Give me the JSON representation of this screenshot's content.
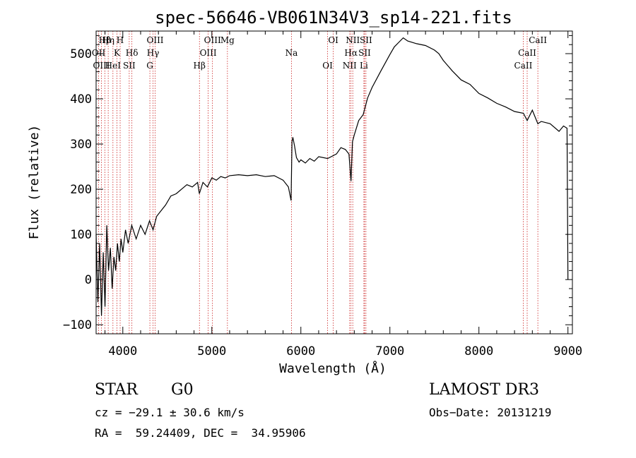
{
  "chart_data": {
    "type": "line",
    "title": "spec-56646-VB061N34V3_sp14-221.fits",
    "xlabel": "Wavelength (Å)",
    "ylabel": "Flux (relative)",
    "xlim": [
      3700,
      9050
    ],
    "ylim": [
      -120,
      550
    ],
    "xticks": [
      4000,
      5000,
      6000,
      7000,
      8000,
      9000
    ],
    "yticks": [
      -100,
      0,
      100,
      200,
      300,
      400,
      500
    ],
    "spectrum": {
      "x": [
        3700,
        3720,
        3740,
        3760,
        3780,
        3800,
        3820,
        3840,
        3860,
        3880,
        3900,
        3920,
        3940,
        3960,
        3980,
        4000,
        4030,
        4060,
        4100,
        4150,
        4200,
        4250,
        4300,
        4340,
        4380,
        4420,
        4480,
        4540,
        4600,
        4660,
        4720,
        4780,
        4840,
        4860,
        4900,
        4950,
        5000,
        5050,
        5100,
        5150,
        5200,
        5300,
        5400,
        5500,
        5600,
        5700,
        5800,
        5860,
        5890,
        5900,
        5910,
        5930,
        5950,
        5980,
        6000,
        6050,
        6100,
        6150,
        6200,
        6300,
        6400,
        6450,
        6500,
        6540,
        6563,
        6580,
        6600,
        6650,
        6700,
        6750,
        6800,
        6900,
        7000,
        7050,
        7100,
        7150,
        7200,
        7300,
        7400,
        7500,
        7550,
        7600,
        7700,
        7800,
        7900,
        8000,
        8100,
        8200,
        8300,
        8400,
        8500,
        8542,
        8600,
        8662,
        8700,
        8800,
        8900,
        8950,
        8990,
        9000
      ],
      "y": [
        100,
        -50,
        80,
        -80,
        60,
        -60,
        120,
        20,
        70,
        -20,
        50,
        20,
        80,
        40,
        90,
        60,
        110,
        80,
        120,
        90,
        120,
        100,
        130,
        110,
        140,
        150,
        165,
        185,
        190,
        200,
        210,
        205,
        215,
        190,
        215,
        205,
        225,
        220,
        228,
        225,
        230,
        232,
        230,
        232,
        228,
        230,
        220,
        205,
        175,
        305,
        315,
        295,
        270,
        260,
        265,
        258,
        268,
        262,
        272,
        268,
        278,
        292,
        288,
        278,
        218,
        305,
        320,
        352,
        365,
        402,
        425,
        462,
        498,
        515,
        525,
        535,
        528,
        522,
        518,
        508,
        500,
        485,
        462,
        442,
        432,
        412,
        402,
        390,
        382,
        372,
        368,
        352,
        375,
        345,
        350,
        345,
        328,
        340,
        335,
        0
      ]
    },
    "emission_lines": [
      {
        "label": "Hβ",
        "wavelength": 3798
      },
      {
        "label": "OII",
        "wavelength": 3728
      },
      {
        "label": "OIII",
        "wavelength": 3760
      },
      {
        "label": "Hη",
        "wavelength": 3836
      },
      {
        "label": "K",
        "wavelength": 3934
      },
      {
        "label": "HeI",
        "wavelength": 3889
      },
      {
        "label": "H",
        "wavelength": 3970
      },
      {
        "label": "Hδ",
        "wavelength": 4102
      },
      {
        "label": "SII",
        "wavelength": 4072
      },
      {
        "label": "OIII",
        "wavelength": 4363
      },
      {
        "label": "Hγ",
        "wavelength": 4340
      },
      {
        "label": "G",
        "wavelength": 4304
      },
      {
        "label": "OIII",
        "wavelength": 5007
      },
      {
        "label": "OIII",
        "wavelength": 4959
      },
      {
        "label": "Hβ",
        "wavelength": 4861
      },
      {
        "label": "Mg",
        "wavelength": 5175
      },
      {
        "label": "Na",
        "wavelength": 5894
      },
      {
        "label": "OI",
        "wavelength": 6300
      },
      {
        "label": "OI",
        "wavelength": 6364
      },
      {
        "label": "Hα",
        "wavelength": 6563
      },
      {
        "label": "NII",
        "wavelength": 6548
      },
      {
        "label": "NII",
        "wavelength": 6583
      },
      {
        "label": "SII",
        "wavelength": 6716
      },
      {
        "label": "Li",
        "wavelength": 6708
      },
      {
        "label": "SII",
        "wavelength": 6731
      },
      {
        "label": "CaII",
        "wavelength": 8542
      },
      {
        "label": "CaII",
        "wavelength": 8498
      },
      {
        "label": "CaII",
        "wavelength": 8662
      }
    ],
    "grid": false,
    "legend": "none",
    "colors": {
      "spectrum": "#000000",
      "line_marker": "#cc2222"
    }
  },
  "info": {
    "object_class": "STAR",
    "subclass": "G0",
    "survey": "LAMOST DR3",
    "redshift": "cz = −29.1 ± 30.6 km/s",
    "obs_date": "Obs−Date: 20131219",
    "coords": "RA =  59.24409, DEC =  34.95906"
  }
}
